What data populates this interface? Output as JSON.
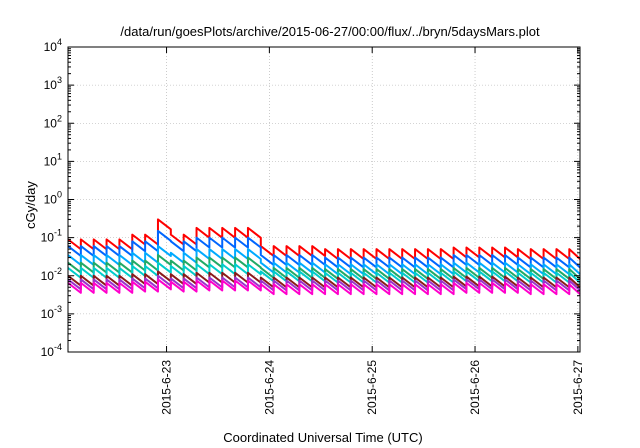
{
  "chart_data": {
    "type": "line",
    "title": "/data/run/goesPlots/archive/2015-06-27/00:00/flux/../bryn/5daysMars.plot",
    "xlabel": "Coordinated Universal Time (UTC)",
    "ylabel": "cGy/day",
    "x_range_days": [
      "2015-06-22 01:00",
      "2015-06-27 00:30"
    ],
    "ylim": [
      0.0001,
      10000
    ],
    "yscale": "log",
    "grid": true,
    "legend": "none",
    "x_tick_labels": [
      "2015-6-23",
      "2015-6-24",
      "2015-6-25",
      "2015-6-26",
      "2015-6-27"
    ],
    "y_tick_labels": [
      {
        "base": "10",
        "exp": "-4"
      },
      {
        "base": "10",
        "exp": "-3"
      },
      {
        "base": "10",
        "exp": "-2"
      },
      {
        "base": "10",
        "exp": "-1"
      },
      {
        "base": "10",
        "exp": "0"
      },
      {
        "base": "10",
        "exp": "1"
      },
      {
        "base": "10",
        "exp": "2"
      },
      {
        "base": "10",
        "exp": "3"
      },
      {
        "base": "10",
        "exp": "4"
      }
    ],
    "sawtooth_period_hours": 3,
    "series": [
      {
        "color": "#ff0000",
        "base_values": [
          0.09,
          0.12,
          0.18,
          0.06,
          0.05,
          0.05,
          0.055,
          0.05
        ],
        "peak_value": 0.3,
        "peak_time": "2015-06-22 22:00"
      },
      {
        "color": "#0066ff",
        "base_values": [
          0.06,
          0.08,
          0.1,
          0.035,
          0.03,
          0.03,
          0.035,
          0.03
        ],
        "peak_value": 0.15,
        "peak_time": "2015-06-22 22:00"
      },
      {
        "color": "#00aaff",
        "base_values": [
          0.035,
          0.04,
          0.05,
          0.022,
          0.02,
          0.02,
          0.022,
          0.02
        ],
        "peak_value": 0.06,
        "peak_time": "2015-06-22 22:00"
      },
      {
        "color": "#22aa66",
        "base_values": [
          0.022,
          0.025,
          0.03,
          0.016,
          0.015,
          0.015,
          0.016,
          0.015
        ],
        "peak_value": 0.035,
        "peak_time": "2015-06-22 22:00"
      },
      {
        "color": "#00cccc",
        "base_values": [
          0.016,
          0.018,
          0.02,
          0.013,
          0.012,
          0.012,
          0.013,
          0.012
        ],
        "peak_value": 0.022,
        "peak_time": "2015-06-22 22:00"
      },
      {
        "color": "#8b1a1a",
        "base_values": [
          0.01,
          0.011,
          0.012,
          0.009,
          0.009,
          0.009,
          0.0095,
          0.009
        ],
        "peak_value": 0.013,
        "peak_time": "2015-06-22 22:00"
      },
      {
        "color": "#9933cc",
        "base_values": [
          0.008,
          0.0085,
          0.009,
          0.0075,
          0.0075,
          0.0075,
          0.008,
          0.0075
        ],
        "peak_value": 0.01,
        "peak_time": "2015-06-22 22:00"
      },
      {
        "color": "#ff00cc",
        "base_values": [
          0.0065,
          0.007,
          0.0075,
          0.006,
          0.006,
          0.006,
          0.0065,
          0.006
        ],
        "peak_value": 0.008,
        "peak_time": "2015-06-22 22:00"
      }
    ]
  }
}
